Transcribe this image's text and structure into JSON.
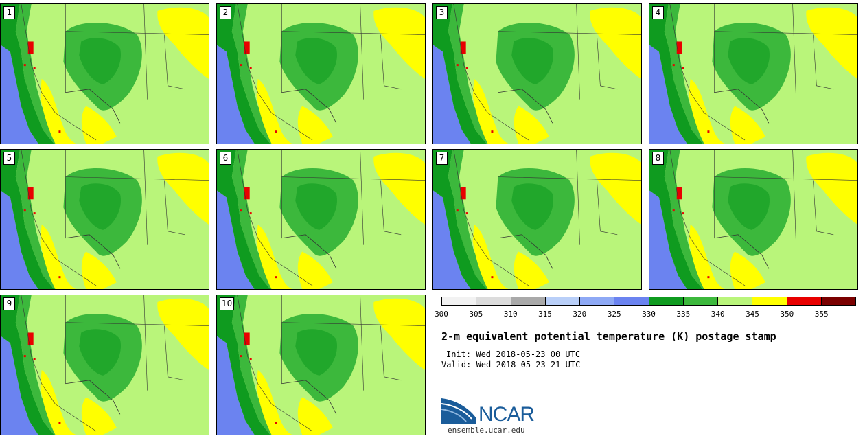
{
  "panels": [
    {
      "label": "1"
    },
    {
      "label": "2"
    },
    {
      "label": "3"
    },
    {
      "label": "4"
    },
    {
      "label": "5"
    },
    {
      "label": "6"
    },
    {
      "label": "7"
    },
    {
      "label": "8"
    },
    {
      "label": "9"
    },
    {
      "label": "10"
    }
  ],
  "colorbar": {
    "colors": [
      "#f2f2f2",
      "#dcdcdc",
      "#a9a9a9",
      "#b9cff8",
      "#8ea9f5",
      "#6b83f0",
      "#0f9b1f",
      "#3cb83c",
      "#b9f57a",
      "#ffff00",
      "#e80000",
      "#7a0000"
    ],
    "ticks": [
      "300",
      "305",
      "310",
      "315",
      "320",
      "325",
      "330",
      "335",
      "340",
      "345",
      "350",
      "355"
    ]
  },
  "title": "2-m equivalent potential temperature (K) postage stamp",
  "init": "Init: Wed 2018-05-23 00 UTC",
  "valid": "Valid: Wed 2018-05-23 21 UTC",
  "logo": {
    "text": "NCAR",
    "url": "ensemble.ucar.edu"
  }
}
